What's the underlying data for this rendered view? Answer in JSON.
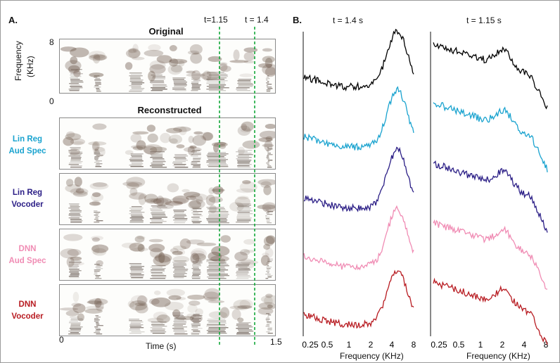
{
  "panelA": {
    "label": "A.",
    "title_original": "Original",
    "title_reconstructed": "Reconstructed",
    "ylabel_top": "Frequency",
    "ylabel_unit": "(KHz)",
    "ytick_top": "8",
    "ytick_bottom": "0",
    "xlabel": "Time (s)",
    "xtick_start": "0",
    "xtick_end": "1.5",
    "marker1": "t=1.15",
    "marker2": "t = 1.4",
    "rows": [
      {
        "line1": "Lin Reg",
        "line2": "Aud Spec",
        "color": "#1aa3cf"
      },
      {
        "line1": "Lin Reg",
        "line2": "Vocoder",
        "color": "#2b1e86"
      },
      {
        "line1": "DNN",
        "line2": "Aud Spec",
        "color": "#f08cb4"
      },
      {
        "line1": "DNN",
        "line2": "Vocoder",
        "color": "#b81c22"
      }
    ],
    "marker_color": "#14a83a"
  },
  "panelB": {
    "label": "B.",
    "col1_title": "t = 1.4 s",
    "col2_title": "t = 1.15 s",
    "xticks": [
      "0.25",
      "0.5",
      "1",
      "2",
      "4",
      "8"
    ],
    "xlabel": "Frequency (KHz)",
    "original_color": "#000000"
  }
}
